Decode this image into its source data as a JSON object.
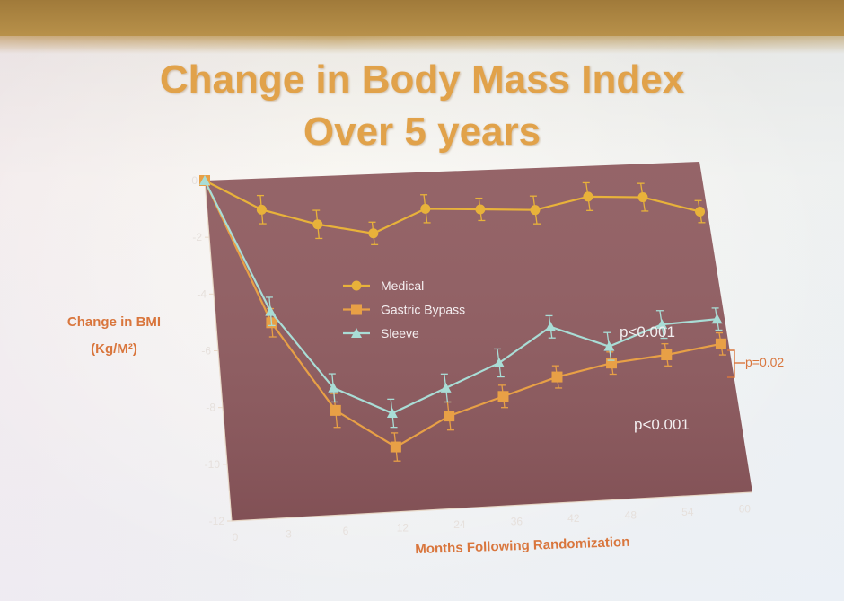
{
  "slide": {
    "title_line1": "Change in Body Mass Index",
    "title_line2": "Over 5 years"
  },
  "chart_data": {
    "type": "line",
    "title": "Change in Body Mass Index Over 5 years",
    "xlabel": "Months Following Randomization",
    "ylabel_line1": "Change in BMI",
    "ylabel_line2": "(Kg/M²)",
    "x_ticks": [
      "0",
      "3",
      "6",
      "12",
      "24",
      "36",
      "42",
      "48",
      "54",
      "60"
    ],
    "y_ticks": [
      0,
      -2,
      -4,
      -6,
      -8,
      -10,
      -12
    ],
    "ylim": [
      -12,
      0
    ],
    "legend_position": "center-left",
    "colors": {
      "plot_background": "#8e5a5e",
      "medical": "#e8b23a",
      "gastric_bypass": "#e8a046",
      "sleeve": "#a9ddd6",
      "axis_label": "#d9763d",
      "annotation": "#f2eef0"
    },
    "series": [
      {
        "name": "Medical",
        "marker": "circle",
        "x": [
          0,
          3,
          6,
          9,
          12,
          15,
          18,
          21,
          24,
          27
        ],
        "y": [
          0,
          -1.1,
          -1.7,
          -2.1,
          -1.3,
          -1.4,
          -1.5,
          -1.1,
          -1.2,
          -1.8
        ],
        "err": [
          0,
          0.5,
          0.5,
          0.4,
          0.5,
          0.4,
          0.5,
          0.5,
          0.5,
          0.4
        ]
      },
      {
        "name": "Gastric Bypass",
        "marker": "square",
        "x": [
          0,
          3,
          6,
          9,
          12,
          15,
          18,
          21,
          24,
          27
        ],
        "y": [
          0,
          -5.1,
          -8.3,
          -9.7,
          -8.7,
          -8.1,
          -7.5,
          -7.1,
          -6.9,
          -6.6
        ],
        "err": [
          0,
          0.5,
          0.6,
          0.5,
          0.5,
          0.4,
          0.4,
          0.4,
          0.4,
          0.4
        ]
      },
      {
        "name": "Sleeve",
        "marker": "triangle",
        "x": [
          0,
          3,
          6,
          9,
          12,
          15,
          18,
          21,
          24,
          27
        ],
        "y": [
          0,
          -4.7,
          -7.5,
          -8.5,
          -7.7,
          -6.9,
          -5.7,
          -6.5,
          -5.8,
          -5.7
        ],
        "err": [
          0,
          0.5,
          0.5,
          0.5,
          0.5,
          0.5,
          0.4,
          0.5,
          0.5,
          0.4
        ]
      }
    ],
    "annotations": [
      {
        "text": "p<0.001",
        "near": "Sleeve"
      },
      {
        "text": "p<0.001",
        "near": "Gastric Bypass"
      },
      {
        "text": "p=0.02",
        "near": "right bracket"
      }
    ]
  }
}
